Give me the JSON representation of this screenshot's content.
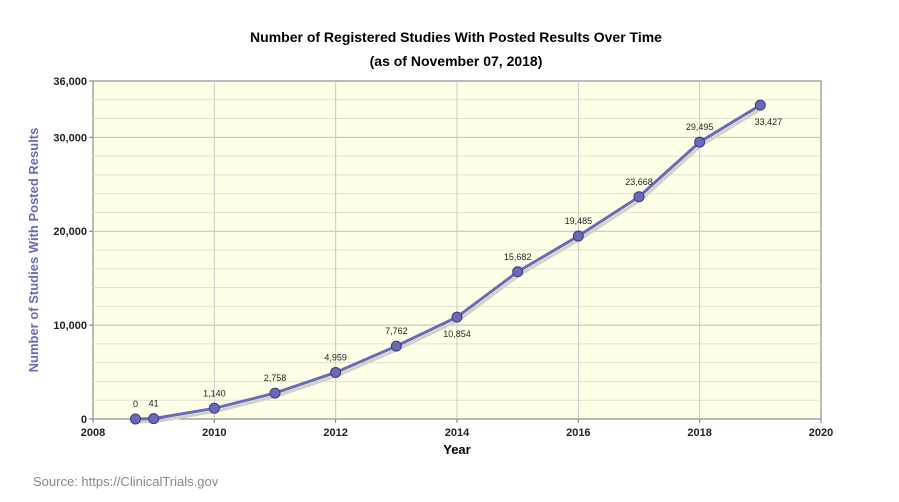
{
  "chart_data": {
    "type": "line",
    "title": "Number of Registered Studies With Posted Results Over Time",
    "subtitle": "(as of November 07, 2018)",
    "xlabel": "Year",
    "ylabel": "Number of Studies With Posted Results",
    "xlim": [
      2008,
      2020
    ],
    "ylim": [
      0,
      36000
    ],
    "x_ticks": [
      2008,
      2010,
      2012,
      2014,
      2016,
      2018,
      2020
    ],
    "y_ticks": [
      0,
      10000,
      20000,
      30000,
      36000
    ],
    "y_tick_labels": [
      "0",
      "10,000",
      "20,000",
      "30,000",
      "36,000"
    ],
    "grid": true,
    "series": [
      {
        "color": "#6a6ab8",
        "x": [
          2008.7,
          2009.0,
          2010.0,
          2011.0,
          2012.0,
          2013.0,
          2014.0,
          2015.0,
          2016.0,
          2017.0,
          2018.0,
          2019.0
        ],
        "values": [
          0,
          41,
          1140,
          2758,
          4959,
          7762,
          10854,
          15682,
          19485,
          23668,
          29495,
          33427
        ],
        "labels": [
          "0",
          "41",
          "1,140",
          "2,758",
          "4,959",
          "7,762",
          "10,854",
          "15,682",
          "19,485",
          "23,668",
          "29,495",
          "33,427"
        ]
      }
    ]
  },
  "footer": {
    "source": "Source: https://ClinicalTrials.gov"
  }
}
